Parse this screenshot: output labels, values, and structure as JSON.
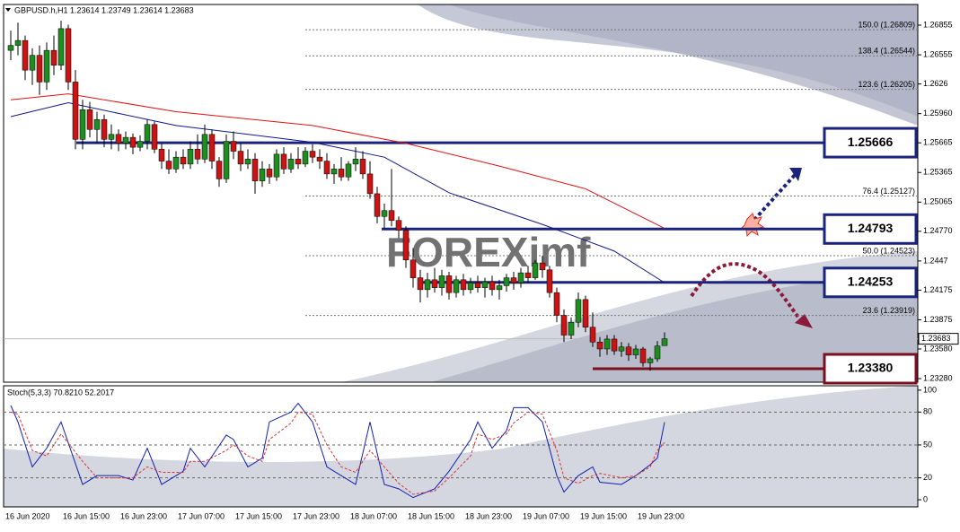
{
  "header": "GBPUSD.h,H1  1.23614 1.23749 1.23614 1.23683",
  "watermark": "FOREXimf",
  "chart_data": [
    {
      "type": "candlestick",
      "ylim": [
        1.27064,
        1.23244
      ],
      "yticks": [
        1.26855,
        1.26555,
        1.2626,
        {
          "value": 1.2596,
          "label": "1.25960"
        },
        1.25665,
        1.25365,
        1.25065,
        {
          "value": 1.2477,
          "label": "1.24770"
        },
        1.2447,
        1.24175,
        1.23875,
        {
          "value": 1.2358,
          "label": "1.23580"
        },
        {
          "value": 1.2328,
          "label": "1.23280"
        }
      ],
      "xticks": [
        "16 Jun 2020",
        "16 Jun 15:00",
        "16 Jun 23:00",
        "17 Jun 07:00",
        "17 Jun 15:00",
        "17 Jun 23:00",
        "18 Jun 07:00",
        "18 Jun 15:00",
        "18 Jun 23:00",
        "19 Jun 07:00",
        "19 Jun 15:00",
        "19 Jun 23:00"
      ],
      "current_price": 1.23683,
      "up_color": "#1e8c1e",
      "down_color": "#c81414",
      "ohlc": [
        [
          1.266,
          1.268,
          1.265,
          1.2665
        ],
        [
          1.2665,
          1.2688,
          1.2655,
          1.267
        ],
        [
          1.267,
          1.2675,
          1.263,
          1.264
        ],
        [
          1.264,
          1.2662,
          1.2625,
          1.2655
        ],
        [
          1.2655,
          1.2665,
          1.2615,
          1.2628
        ],
        [
          1.2628,
          1.2668,
          1.262,
          1.266
        ],
        [
          1.266,
          1.2675,
          1.2635,
          1.2645
        ],
        [
          1.2645,
          1.269,
          1.264,
          1.2682
        ],
        [
          1.2682,
          1.2686,
          1.262,
          1.2628
        ],
        [
          1.2628,
          1.264,
          1.256,
          1.257
        ],
        [
          1.257,
          1.261,
          1.256,
          1.26
        ],
        [
          1.26,
          1.2608,
          1.2572,
          1.258
        ],
        [
          1.258,
          1.2598,
          1.2566,
          1.259
        ],
        [
          1.259,
          1.2595,
          1.2562,
          1.257
        ],
        [
          1.257,
          1.2585,
          1.256,
          1.2575
        ],
        [
          1.2575,
          1.258,
          1.2558,
          1.2566
        ],
        [
          1.2566,
          1.2578,
          1.256,
          1.2572
        ],
        [
          1.2572,
          1.2576,
          1.2555,
          1.2562
        ],
        [
          1.2562,
          1.2574,
          1.2558,
          1.2568
        ],
        [
          1.2568,
          1.259,
          1.256,
          1.2585
        ],
        [
          1.2585,
          1.2588,
          1.2556,
          1.256
        ],
        [
          1.256,
          1.2566,
          1.254,
          1.2548
        ],
        [
          1.2548,
          1.256,
          1.2535,
          1.254
        ],
        [
          1.254,
          1.2558,
          1.2536,
          1.2552
        ],
        [
          1.2552,
          1.256,
          1.254,
          1.2545
        ],
        [
          1.2545,
          1.2568,
          1.254,
          1.256
        ],
        [
          1.256,
          1.2575,
          1.2545,
          1.255
        ],
        [
          1.255,
          1.2585,
          1.2546,
          1.2575
        ],
        [
          1.2575,
          1.258,
          1.254,
          1.2548
        ],
        [
          1.2548,
          1.2552,
          1.2522,
          1.253
        ],
        [
          1.253,
          1.2575,
          1.2526,
          1.2568
        ],
        [
          1.2568,
          1.2578,
          1.255,
          1.2558
        ],
        [
          1.2558,
          1.2566,
          1.2538,
          1.2545
        ],
        [
          1.2545,
          1.256,
          1.254,
          1.255
        ],
        [
          1.255,
          1.2556,
          1.2515,
          1.2528
        ],
        [
          1.2528,
          1.2548,
          1.2522,
          1.254
        ],
        [
          1.254,
          1.2545,
          1.2525,
          1.2532
        ],
        [
          1.2532,
          1.256,
          1.2528,
          1.2555
        ],
        [
          1.2555,
          1.2562,
          1.2535,
          1.254
        ],
        [
          1.254,
          1.2556,
          1.2536,
          1.255
        ],
        [
          1.255,
          1.2562,
          1.254,
          1.2545
        ],
        [
          1.2545,
          1.2562,
          1.2542,
          1.2558
        ],
        [
          1.2558,
          1.2565,
          1.2546,
          1.2552
        ],
        [
          1.2552,
          1.256,
          1.254,
          1.2548
        ],
        [
          1.2548,
          1.2556,
          1.253,
          1.2535
        ],
        [
          1.2535,
          1.2545,
          1.2525,
          1.254
        ],
        [
          1.254,
          1.2552,
          1.2528,
          1.2532
        ],
        [
          1.2532,
          1.2548,
          1.2528,
          1.2545
        ],
        [
          1.2545,
          1.2562,
          1.2538,
          1.255
        ],
        [
          1.255,
          1.2558,
          1.253,
          1.2535
        ],
        [
          1.2535,
          1.2548,
          1.251,
          1.2515
        ],
        [
          1.2515,
          1.2522,
          1.2485,
          1.2492
        ],
        [
          1.2492,
          1.2505,
          1.248,
          1.2498
        ],
        [
          1.2498,
          1.254,
          1.2482,
          1.2488
        ],
        [
          1.2488,
          1.2492,
          1.247,
          1.2478
        ],
        [
          1.2478,
          1.2482,
          1.244,
          1.2448
        ],
        [
          1.2448,
          1.246,
          1.242,
          1.243
        ],
        [
          1.243,
          1.2438,
          1.2405,
          1.2418
        ],
        [
          1.2418,
          1.2435,
          1.241,
          1.2428
        ],
        [
          1.2428,
          1.244,
          1.2415,
          1.242
        ],
        [
          1.242,
          1.2438,
          1.2412,
          1.2432
        ],
        [
          1.2432,
          1.2436,
          1.2408,
          1.2415
        ],
        [
          1.2415,
          1.2432,
          1.241,
          1.2428
        ],
        [
          1.2428,
          1.2434,
          1.2412,
          1.2418
        ],
        [
          1.2418,
          1.243,
          1.2414,
          1.2425
        ],
        [
          1.2425,
          1.2432,
          1.2415,
          1.242
        ],
        [
          1.242,
          1.243,
          1.241,
          1.2426
        ],
        [
          1.2426,
          1.2432,
          1.2412,
          1.2418
        ],
        [
          1.2418,
          1.2428,
          1.2408,
          1.2422
        ],
        [
          1.2422,
          1.2434,
          1.2416,
          1.243
        ],
        [
          1.243,
          1.2436,
          1.2418,
          1.2425
        ],
        [
          1.2425,
          1.244,
          1.242,
          1.2435
        ],
        [
          1.2435,
          1.2442,
          1.2425,
          1.243
        ],
        [
          1.243,
          1.2448,
          1.2428,
          1.2445
        ],
        [
          1.2445,
          1.2452,
          1.243,
          1.2438
        ],
        [
          1.2438,
          1.2442,
          1.241,
          1.2415
        ],
        [
          1.2415,
          1.242,
          1.2385,
          1.2392
        ],
        [
          1.2392,
          1.2398,
          1.2365,
          1.2372
        ],
        [
          1.2372,
          1.239,
          1.2368,
          1.2385
        ],
        [
          1.2385,
          1.2415,
          1.238,
          1.2408
        ],
        [
          1.2408,
          1.2412,
          1.2375,
          1.238
        ],
        [
          1.238,
          1.2395,
          1.236,
          1.2365
        ],
        [
          1.2365,
          1.237,
          1.235,
          1.2358
        ],
        [
          1.2358,
          1.2372,
          1.2352,
          1.2368
        ],
        [
          1.2368,
          1.2372,
          1.2352,
          1.2356
        ],
        [
          1.2356,
          1.2365,
          1.235,
          1.236
        ],
        [
          1.236,
          1.2364,
          1.2346,
          1.2352
        ],
        [
          1.2352,
          1.2362,
          1.2348,
          1.2358
        ],
        [
          1.2358,
          1.236,
          1.234,
          1.2344
        ],
        [
          1.2344,
          1.235,
          1.2336,
          1.2348
        ],
        [
          1.2348,
          1.2366,
          1.2345,
          1.2361
        ],
        [
          1.23614,
          1.23749,
          1.23614,
          1.23683
        ]
      ],
      "series": [
        {
          "color": "#e01010",
          "x": [
            0,
            8,
            23,
            42,
            55,
            68,
            80,
            91
          ],
          "values": [
            1.261,
            1.2616,
            1.2598,
            1.2584,
            1.2566,
            1.2543,
            1.252,
            1.248
          ]
        },
        {
          "color": "#101880",
          "x": [
            0,
            8,
            23,
            42,
            52,
            61,
            74,
            84,
            91
          ],
          "values": [
            1.2593,
            1.2607,
            1.2584,
            1.2567,
            1.2552,
            1.2516,
            1.2484,
            1.2457,
            1.2425
          ]
        }
      ],
      "fib_levels": [
        {
          "value": 1.26809,
          "label": "150.0 (1.26809)"
        },
        {
          "value": 1.26544,
          "label": "138.4 (1.26544)"
        },
        {
          "value": 1.26205,
          "label": "123.6 (1.26205)"
        },
        {
          "value": 1.25127,
          "label": "76.4 (1.25127)"
        },
        {
          "value": 1.24523,
          "label": "50.0 (1.24523)"
        },
        {
          "value": 1.23919,
          "label": "23.6 (1.23919)"
        }
      ],
      "levels": [
        {
          "value": 1.25666,
          "label": "1.25666",
          "color": "#1a237e"
        },
        {
          "value": 1.24793,
          "label": "1.24793",
          "color": "#1a237e"
        },
        {
          "value": 1.24253,
          "label": "1.24253",
          "color": "#1a237e"
        },
        {
          "value": 1.2338,
          "label": "1.23380",
          "color": "#7b1020"
        }
      ]
    },
    {
      "type": "line",
      "title": "Stoch(5,3,3) 70.8210 52.2017",
      "ylim": [
        -6.5,
        104
      ],
      "yticks": [
        100,
        80,
        50,
        20,
        0
      ],
      "grid_ticks": [
        80,
        50,
        20
      ],
      "series": [
        {
          "color": "#1020b0",
          "x": [
            0,
            1,
            3,
            5,
            7,
            10,
            12,
            15,
            17,
            19,
            21,
            24,
            25,
            27,
            30,
            31,
            33,
            35,
            36,
            39,
            40,
            42,
            44,
            46,
            48,
            50,
            52,
            54,
            56,
            59,
            61,
            64,
            65,
            67,
            69,
            70,
            72,
            74,
            76,
            77,
            79,
            81,
            82,
            85,
            87,
            89,
            90,
            91
          ],
          "values": [
            86,
            71,
            30,
            47,
            71,
            14,
            22,
            22,
            18,
            47,
            14,
            26,
            47,
            30,
            59,
            55,
            30,
            38,
            71,
            80,
            88,
            71,
            30,
            22,
            14,
            71,
            14,
            10,
            2,
            10,
            26,
            55,
            71,
            47,
            63,
            84,
            84,
            71,
            22,
            7,
            22,
            30,
            16,
            14,
            22,
            32,
            38,
            70.821
          ]
        },
        {
          "color": "#e03030",
          "dash": true,
          "x": [
            0,
            1,
            3,
            5,
            7,
            10,
            12,
            15,
            17,
            19,
            21,
            24,
            25,
            27,
            30,
            31,
            33,
            35,
            36,
            39,
            40,
            42,
            44,
            46,
            48,
            50,
            52,
            54,
            56,
            59,
            61,
            64,
            65,
            67,
            69,
            70,
            72,
            74,
            76,
            77,
            79,
            81,
            82,
            85,
            87,
            89,
            90,
            91
          ],
          "values": [
            80,
            78,
            45,
            40,
            60,
            35,
            20,
            20,
            20,
            30,
            25,
            25,
            35,
            35,
            45,
            50,
            40,
            35,
            55,
            70,
            80,
            78,
            50,
            30,
            25,
            45,
            30,
            15,
            5,
            8,
            20,
            40,
            60,
            55,
            60,
            70,
            80,
            78,
            45,
            20,
            15,
            22,
            24,
            20,
            22,
            30,
            45,
            52.2017
          ]
        }
      ]
    }
  ]
}
